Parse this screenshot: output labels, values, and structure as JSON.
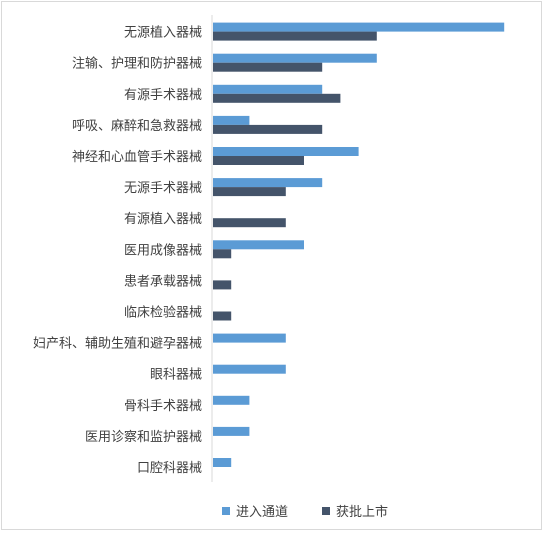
{
  "chart_data": {
    "type": "bar",
    "orientation": "horizontal",
    "categories": [
      "无源植入器械",
      "注输、护理和防护器械",
      "有源手术器械",
      "呼吸、麻醉和急救器械",
      "神经和心血管手术器械",
      "无源手术器械",
      "有源植入器械",
      "医用成像器械",
      "患者承载器械",
      "临床检验器械",
      "妇产科、辅助生殖和避孕器械",
      "眼科器械",
      "骨科手术器械",
      "医用诊察和监护器械",
      "口腔科器械"
    ],
    "series": [
      {
        "name": "进入通道",
        "color": "#5b9bd5",
        "values": [
          16,
          9,
          6,
          2,
          8,
          6,
          0,
          5,
          0,
          0,
          4,
          4,
          2,
          2,
          1
        ]
      },
      {
        "name": "获批上市",
        "color": "#44546a",
        "values": [
          9,
          6,
          7,
          6,
          5,
          4,
          4,
          1,
          1,
          1,
          0,
          0,
          0,
          0,
          0
        ]
      }
    ],
    "xlim": [
      0,
      18
    ],
    "grid": false,
    "legend_position": "bottom"
  }
}
